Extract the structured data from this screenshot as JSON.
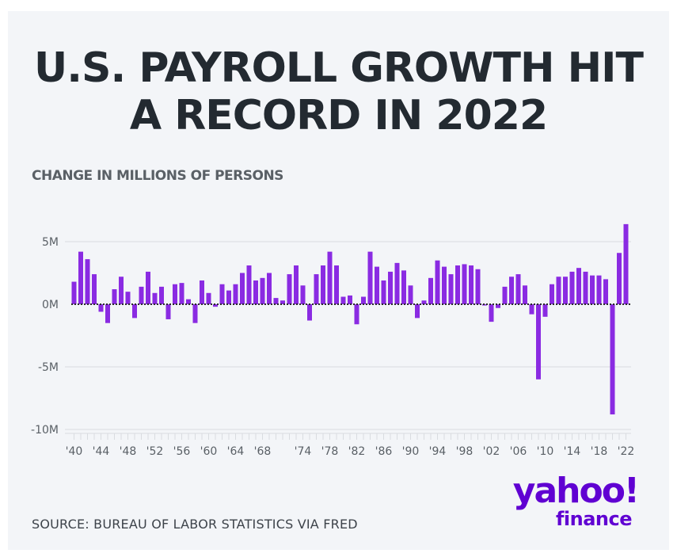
{
  "title_line1": "U.S. PAYROLL GROWTH HIT",
  "title_line2": "A RECORD IN 2022",
  "source": "SOURCE: BUREAU OF LABOR STATISTICS VIA FRED",
  "logo": {
    "brand": "yahoo!",
    "sub": "finance"
  },
  "colors": {
    "bar": "#8a2be2",
    "grid": "#d9dce0",
    "zero": "#2b2b2b",
    "text": "#232a31"
  },
  "chart_data": {
    "type": "bar",
    "subtitle": "CHANGE IN MILLIONS OF PERSONS",
    "ylim": [
      -10,
      7
    ],
    "yticks": [
      5,
      0,
      -5,
      -10
    ],
    "ytick_labels": [
      "5M",
      "0M",
      "-5M",
      "-10M"
    ],
    "x": [
      1940,
      1941,
      1942,
      1943,
      1944,
      1945,
      1946,
      1947,
      1948,
      1949,
      1950,
      1951,
      1952,
      1953,
      1954,
      1955,
      1956,
      1957,
      1958,
      1959,
      1960,
      1961,
      1962,
      1963,
      1964,
      1965,
      1966,
      1967,
      1968,
      1969,
      1970,
      1971,
      1972,
      1973,
      1974,
      1975,
      1976,
      1977,
      1978,
      1979,
      1980,
      1981,
      1982,
      1983,
      1984,
      1985,
      1986,
      1987,
      1988,
      1989,
      1990,
      1991,
      1992,
      1993,
      1994,
      1995,
      1996,
      1997,
      1998,
      1999,
      2000,
      2001,
      2002,
      2003,
      2004,
      2005,
      2006,
      2007,
      2008,
      2009,
      2010,
      2011,
      2012,
      2013,
      2014,
      2015,
      2016,
      2017,
      2018,
      2019,
      2020,
      2021,
      2022
    ],
    "values": [
      1.8,
      4.2,
      3.6,
      2.4,
      -0.6,
      -1.5,
      1.2,
      2.2,
      1.0,
      -1.1,
      1.4,
      2.6,
      0.9,
      1.4,
      -1.2,
      1.6,
      1.7,
      0.4,
      -1.5,
      1.9,
      0.9,
      -0.2,
      1.6,
      1.1,
      1.6,
      2.5,
      3.1,
      1.9,
      2.1,
      2.5,
      0.5,
      0.3,
      2.4,
      3.1,
      1.5,
      -1.3,
      2.4,
      3.1,
      4.2,
      3.1,
      0.6,
      0.7,
      -1.6,
      0.6,
      4.2,
      3.0,
      1.9,
      2.6,
      3.3,
      2.7,
      1.5,
      -1.1,
      0.3,
      2.1,
      3.5,
      3.0,
      2.4,
      3.1,
      3.2,
      3.1,
      2.8,
      -0.1,
      -1.4,
      -0.3,
      1.4,
      2.2,
      2.4,
      1.5,
      -0.8,
      -6.0,
      -1.0,
      1.6,
      2.2,
      2.2,
      2.6,
      2.9,
      2.6,
      2.3,
      2.3,
      2.0,
      -8.8,
      4.1,
      6.4
    ],
    "xtick_labels": [
      "'40",
      "'44",
      "'48",
      "'52",
      "'56",
      "'60",
      "'64",
      "'68",
      "'74",
      "'78",
      "'82",
      "'86",
      "'90",
      "'94",
      "'98",
      "'02",
      "'06",
      "'10",
      "'14",
      "'18",
      "'22"
    ],
    "xtick_years": [
      1940,
      1944,
      1948,
      1952,
      1956,
      1960,
      1964,
      1968,
      1974,
      1978,
      1982,
      1986,
      1990,
      1994,
      1998,
      2002,
      2006,
      2010,
      2014,
      2018,
      2022
    ],
    "grid": true
  }
}
